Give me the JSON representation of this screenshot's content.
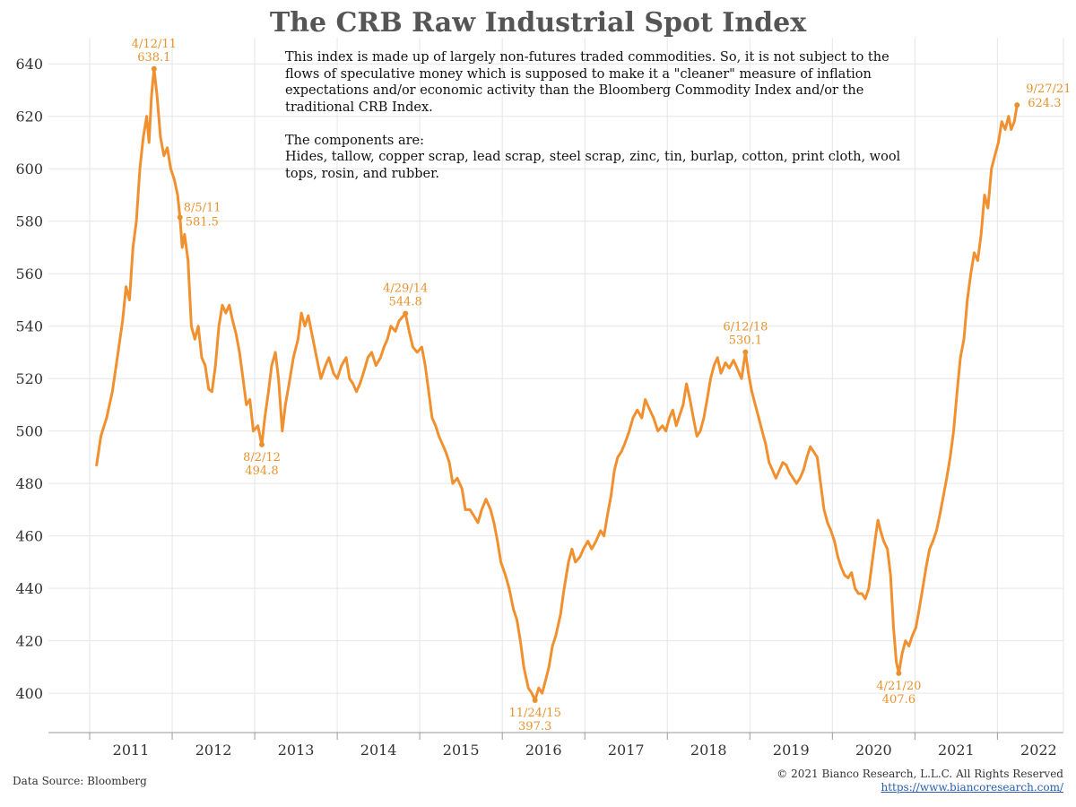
{
  "title": "The CRB Raw Industrial Spot Index",
  "note": {
    "paragraph1": "This index is made up of largely non-futures traded commodities. So, it is not subject to the flows of speculative money which is supposed to make it a \"cleaner\" measure of inflation expectations and/or economic activity than the Bloomberg Commodity Index and/or the traditional CRB Index.",
    "components_label": "The components are:",
    "components_list": "Hides, tallow, copper scrap, lead scrap, steel scrap, zinc, tin, burlap, cotton, print cloth, wool tops, rosin, and rubber."
  },
  "footer": {
    "source": "Data Source: Bloomberg",
    "copyright": "© 2021 Bianco Research, L.L.C. All Rights Reserved",
    "website": "https://www.biancoresearch.com/"
  },
  "colors": {
    "line": "#f0902f",
    "annotation": "#e8922e",
    "grid": "#e6e6e6",
    "axis": "#999999"
  },
  "chart_data": {
    "type": "line",
    "title": "The CRB Raw Industrial Spot Index",
    "xlabel": "",
    "ylabel": "",
    "xlim": [
      2010,
      2022.3
    ],
    "ylim": [
      385,
      650
    ],
    "grid": true,
    "x_ticks": [
      2011,
      2012,
      2013,
      2014,
      2015,
      2016,
      2017,
      2018,
      2019,
      2020,
      2021,
      2022
    ],
    "y_ticks": [
      400,
      420,
      440,
      460,
      480,
      500,
      520,
      540,
      560,
      580,
      600,
      620,
      640
    ],
    "series": [
      {
        "color": "#f0902f",
        "points": [
          [
            "2010-08-01",
            487
          ],
          [
            "2010-08-20",
            498
          ],
          [
            "2010-09-15",
            505
          ],
          [
            "2010-10-10",
            515
          ],
          [
            "2010-11-05",
            530
          ],
          [
            "2010-11-25",
            542
          ],
          [
            "2010-12-10",
            555
          ],
          [
            "2010-12-25",
            550
          ],
          [
            "2011-01-10",
            570
          ],
          [
            "2011-01-25",
            580
          ],
          [
            "2011-02-10",
            600
          ],
          [
            "2011-02-25",
            612
          ],
          [
            "2011-03-10",
            620
          ],
          [
            "2011-03-20",
            610
          ],
          [
            "2011-04-01",
            628
          ],
          [
            "2011-04-12",
            638.1
          ],
          [
            "2011-04-25",
            628
          ],
          [
            "2011-05-10",
            612
          ],
          [
            "2011-05-25",
            605
          ],
          [
            "2011-06-10",
            608
          ],
          [
            "2011-06-25",
            600
          ],
          [
            "2011-07-10",
            596
          ],
          [
            "2011-07-25",
            590
          ],
          [
            "2011-08-05",
            581.5
          ],
          [
            "2011-08-15",
            570
          ],
          [
            "2011-08-25",
            575
          ],
          [
            "2011-09-10",
            565
          ],
          [
            "2011-09-25",
            540
          ],
          [
            "2011-10-10",
            535
          ],
          [
            "2011-10-25",
            540
          ],
          [
            "2011-11-10",
            528
          ],
          [
            "2011-11-25",
            525
          ],
          [
            "2011-12-10",
            516
          ],
          [
            "2011-12-25",
            515
          ],
          [
            "2012-01-10",
            525
          ],
          [
            "2012-01-25",
            540
          ],
          [
            "2012-02-10",
            548
          ],
          [
            "2012-02-25",
            545
          ],
          [
            "2012-03-10",
            548
          ],
          [
            "2012-03-25",
            542
          ],
          [
            "2012-04-10",
            537
          ],
          [
            "2012-04-25",
            530
          ],
          [
            "2012-05-10",
            520
          ],
          [
            "2012-05-25",
            510
          ],
          [
            "2012-06-10",
            512
          ],
          [
            "2012-06-25",
            500
          ],
          [
            "2012-07-15",
            502
          ],
          [
            "2012-08-02",
            494.8
          ],
          [
            "2012-08-15",
            505
          ],
          [
            "2012-09-01",
            515
          ],
          [
            "2012-09-15",
            525
          ],
          [
            "2012-10-01",
            530
          ],
          [
            "2012-10-15",
            520
          ],
          [
            "2012-11-01",
            500
          ],
          [
            "2012-11-15",
            510
          ],
          [
            "2012-12-01",
            518
          ],
          [
            "2012-12-20",
            528
          ],
          [
            "2013-01-10",
            535
          ],
          [
            "2013-01-25",
            545
          ],
          [
            "2013-02-10",
            540
          ],
          [
            "2013-02-25",
            544
          ],
          [
            "2013-03-15",
            535
          ],
          [
            "2013-04-01",
            528
          ],
          [
            "2013-04-20",
            520
          ],
          [
            "2013-05-10",
            525
          ],
          [
            "2013-05-25",
            528
          ],
          [
            "2013-06-15",
            522
          ],
          [
            "2013-07-01",
            520
          ],
          [
            "2013-07-20",
            525
          ],
          [
            "2013-08-10",
            528
          ],
          [
            "2013-08-25",
            520
          ],
          [
            "2013-09-10",
            518
          ],
          [
            "2013-09-25",
            515
          ],
          [
            "2013-10-10",
            518
          ],
          [
            "2013-10-25",
            522
          ],
          [
            "2013-11-15",
            528
          ],
          [
            "2013-12-01",
            530
          ],
          [
            "2013-12-20",
            525
          ],
          [
            "2014-01-10",
            528
          ],
          [
            "2014-01-25",
            532
          ],
          [
            "2014-02-10",
            535
          ],
          [
            "2014-02-25",
            540
          ],
          [
            "2014-03-15",
            538
          ],
          [
            "2014-04-01",
            542
          ],
          [
            "2014-04-29",
            544.8
          ],
          [
            "2014-05-15",
            538
          ],
          [
            "2014-06-01",
            532
          ],
          [
            "2014-06-20",
            530
          ],
          [
            "2014-07-10",
            532
          ],
          [
            "2014-07-25",
            525
          ],
          [
            "2014-08-10",
            515
          ],
          [
            "2014-08-25",
            505
          ],
          [
            "2014-09-10",
            502
          ],
          [
            "2014-09-25",
            498
          ],
          [
            "2014-10-10",
            495
          ],
          [
            "2014-10-25",
            492
          ],
          [
            "2014-11-10",
            488
          ],
          [
            "2014-11-25",
            480
          ],
          [
            "2014-12-15",
            482
          ],
          [
            "2015-01-05",
            478
          ],
          [
            "2015-01-20",
            470
          ],
          [
            "2015-02-10",
            470
          ],
          [
            "2015-02-25",
            468
          ],
          [
            "2015-03-15",
            465
          ],
          [
            "2015-04-01",
            470
          ],
          [
            "2015-04-20",
            474
          ],
          [
            "2015-05-10",
            470
          ],
          [
            "2015-05-25",
            465
          ],
          [
            "2015-06-10",
            458
          ],
          [
            "2015-06-25",
            450
          ],
          [
            "2015-07-15",
            445
          ],
          [
            "2015-08-01",
            440
          ],
          [
            "2015-08-20",
            432
          ],
          [
            "2015-09-05",
            428
          ],
          [
            "2015-09-20",
            420
          ],
          [
            "2015-10-05",
            410
          ],
          [
            "2015-10-25",
            402
          ],
          [
            "2015-11-10",
            400
          ],
          [
            "2015-11-24",
            397.3
          ],
          [
            "2015-12-10",
            402
          ],
          [
            "2015-12-25",
            400
          ],
          [
            "2016-01-10",
            405
          ],
          [
            "2016-01-25",
            410
          ],
          [
            "2016-02-10",
            418
          ],
          [
            "2016-02-25",
            422
          ],
          [
            "2016-03-15",
            430
          ],
          [
            "2016-04-01",
            440
          ],
          [
            "2016-04-20",
            450
          ],
          [
            "2016-05-05",
            455
          ],
          [
            "2016-05-20",
            450
          ],
          [
            "2016-06-10",
            452
          ],
          [
            "2016-06-25",
            455
          ],
          [
            "2016-07-15",
            458
          ],
          [
            "2016-08-01",
            455
          ],
          [
            "2016-08-20",
            458
          ],
          [
            "2016-09-10",
            462
          ],
          [
            "2016-09-25",
            460
          ],
          [
            "2016-10-10",
            468
          ],
          [
            "2016-10-25",
            475
          ],
          [
            "2016-11-10",
            485
          ],
          [
            "2016-11-25",
            490
          ],
          [
            "2016-12-10",
            492
          ],
          [
            "2016-12-25",
            495
          ],
          [
            "2017-01-15",
            500
          ],
          [
            "2017-02-01",
            505
          ],
          [
            "2017-02-20",
            508
          ],
          [
            "2017-03-10",
            505
          ],
          [
            "2017-03-25",
            512
          ],
          [
            "2017-04-15",
            508
          ],
          [
            "2017-05-01",
            505
          ],
          [
            "2017-05-20",
            500
          ],
          [
            "2017-06-10",
            502
          ],
          [
            "2017-06-25",
            500
          ],
          [
            "2017-07-10",
            505
          ],
          [
            "2017-07-25",
            508
          ],
          [
            "2017-08-10",
            502
          ],
          [
            "2017-08-25",
            506
          ],
          [
            "2017-09-10",
            510
          ],
          [
            "2017-09-25",
            518
          ],
          [
            "2017-10-10",
            512
          ],
          [
            "2017-10-25",
            505
          ],
          [
            "2017-11-10",
            498
          ],
          [
            "2017-11-25",
            500
          ],
          [
            "2017-12-10",
            505
          ],
          [
            "2017-12-25",
            512
          ],
          [
            "2018-01-10",
            520
          ],
          [
            "2018-01-25",
            525
          ],
          [
            "2018-02-10",
            528
          ],
          [
            "2018-02-25",
            522
          ],
          [
            "2018-03-15",
            526
          ],
          [
            "2018-04-01",
            524
          ],
          [
            "2018-04-20",
            527
          ],
          [
            "2018-05-10",
            523
          ],
          [
            "2018-05-25",
            520
          ],
          [
            "2018-06-12",
            530.1
          ],
          [
            "2018-06-25",
            522
          ],
          [
            "2018-07-10",
            515
          ],
          [
            "2018-07-25",
            510
          ],
          [
            "2018-08-10",
            505
          ],
          [
            "2018-08-25",
            500
          ],
          [
            "2018-09-10",
            495
          ],
          [
            "2018-09-25",
            488
          ],
          [
            "2018-10-10",
            485
          ],
          [
            "2018-10-25",
            482
          ],
          [
            "2018-11-10",
            485
          ],
          [
            "2018-11-25",
            488
          ],
          [
            "2018-12-10",
            487
          ],
          [
            "2018-12-25",
            484
          ],
          [
            "2019-01-10",
            482
          ],
          [
            "2019-01-25",
            480
          ],
          [
            "2019-02-10",
            482
          ],
          [
            "2019-02-25",
            485
          ],
          [
            "2019-03-10",
            490
          ],
          [
            "2019-03-25",
            494
          ],
          [
            "2019-04-10",
            492
          ],
          [
            "2019-04-25",
            490
          ],
          [
            "2019-05-10",
            480
          ],
          [
            "2019-05-25",
            470
          ],
          [
            "2019-06-10",
            465
          ],
          [
            "2019-06-25",
            462
          ],
          [
            "2019-07-10",
            458
          ],
          [
            "2019-07-25",
            452
          ],
          [
            "2019-08-10",
            448
          ],
          [
            "2019-08-25",
            445
          ],
          [
            "2019-09-10",
            444
          ],
          [
            "2019-09-25",
            446
          ],
          [
            "2019-10-10",
            440
          ],
          [
            "2019-10-25",
            438
          ],
          [
            "2019-11-10",
            438
          ],
          [
            "2019-11-25",
            436
          ],
          [
            "2019-12-10",
            440
          ],
          [
            "2019-12-25",
            450
          ],
          [
            "2020-01-10",
            460
          ],
          [
            "2020-01-20",
            466
          ],
          [
            "2020-02-01",
            462
          ],
          [
            "2020-02-15",
            458
          ],
          [
            "2020-03-01",
            455
          ],
          [
            "2020-03-15",
            445
          ],
          [
            "2020-03-28",
            425
          ],
          [
            "2020-04-10",
            412
          ],
          [
            "2020-04-21",
            407.6
          ],
          [
            "2020-05-05",
            415
          ],
          [
            "2020-05-20",
            420
          ],
          [
            "2020-06-05",
            418
          ],
          [
            "2020-06-20",
            422
          ],
          [
            "2020-07-05",
            425
          ],
          [
            "2020-07-20",
            432
          ],
          [
            "2020-08-05",
            440
          ],
          [
            "2020-08-20",
            448
          ],
          [
            "2020-09-05",
            455
          ],
          [
            "2020-09-20",
            458
          ],
          [
            "2020-10-05",
            462
          ],
          [
            "2020-10-20",
            468
          ],
          [
            "2020-11-05",
            475
          ],
          [
            "2020-11-20",
            482
          ],
          [
            "2020-12-05",
            490
          ],
          [
            "2020-12-20",
            500
          ],
          [
            "2021-01-05",
            515
          ],
          [
            "2021-01-20",
            528
          ],
          [
            "2021-02-05",
            535
          ],
          [
            "2021-02-20",
            550
          ],
          [
            "2021-03-05",
            560
          ],
          [
            "2021-03-20",
            568
          ],
          [
            "2021-04-05",
            565
          ],
          [
            "2021-04-20",
            575
          ],
          [
            "2021-05-05",
            590
          ],
          [
            "2021-05-20",
            585
          ],
          [
            "2021-06-05",
            600
          ],
          [
            "2021-06-20",
            605
          ],
          [
            "2021-07-05",
            610
          ],
          [
            "2021-07-20",
            618
          ],
          [
            "2021-08-05",
            615
          ],
          [
            "2021-08-20",
            620
          ],
          [
            "2021-09-01",
            615
          ],
          [
            "2021-09-15",
            618
          ],
          [
            "2021-09-27",
            624.3
          ]
        ]
      }
    ],
    "annotations": [
      {
        "date_label": "4/12/11",
        "value_label": "638.1",
        "x": "2011-04-12",
        "y": 638.1,
        "placement": "above"
      },
      {
        "date_label": "8/5/11",
        "value_label": "581.5",
        "x": "2011-08-05",
        "y": 581.5,
        "placement": "right"
      },
      {
        "date_label": "8/2/12",
        "value_label": "494.8",
        "x": "2012-08-02",
        "y": 494.8,
        "placement": "below"
      },
      {
        "date_label": "4/29/14",
        "value_label": "544.8",
        "x": "2014-04-29",
        "y": 544.8,
        "placement": "above"
      },
      {
        "date_label": "11/24/15",
        "value_label": "397.3",
        "x": "2015-11-24",
        "y": 397.3,
        "placement": "below"
      },
      {
        "date_label": "6/12/18",
        "value_label": "530.1",
        "x": "2018-06-12",
        "y": 530.1,
        "placement": "above"
      },
      {
        "date_label": "4/21/20",
        "value_label": "407.6",
        "x": "2020-04-21",
        "y": 407.6,
        "placement": "below"
      },
      {
        "date_label": "9/27/21",
        "value_label": "624.3",
        "x": "2021-09-27",
        "y": 624.3,
        "placement": "above-right"
      }
    ]
  }
}
